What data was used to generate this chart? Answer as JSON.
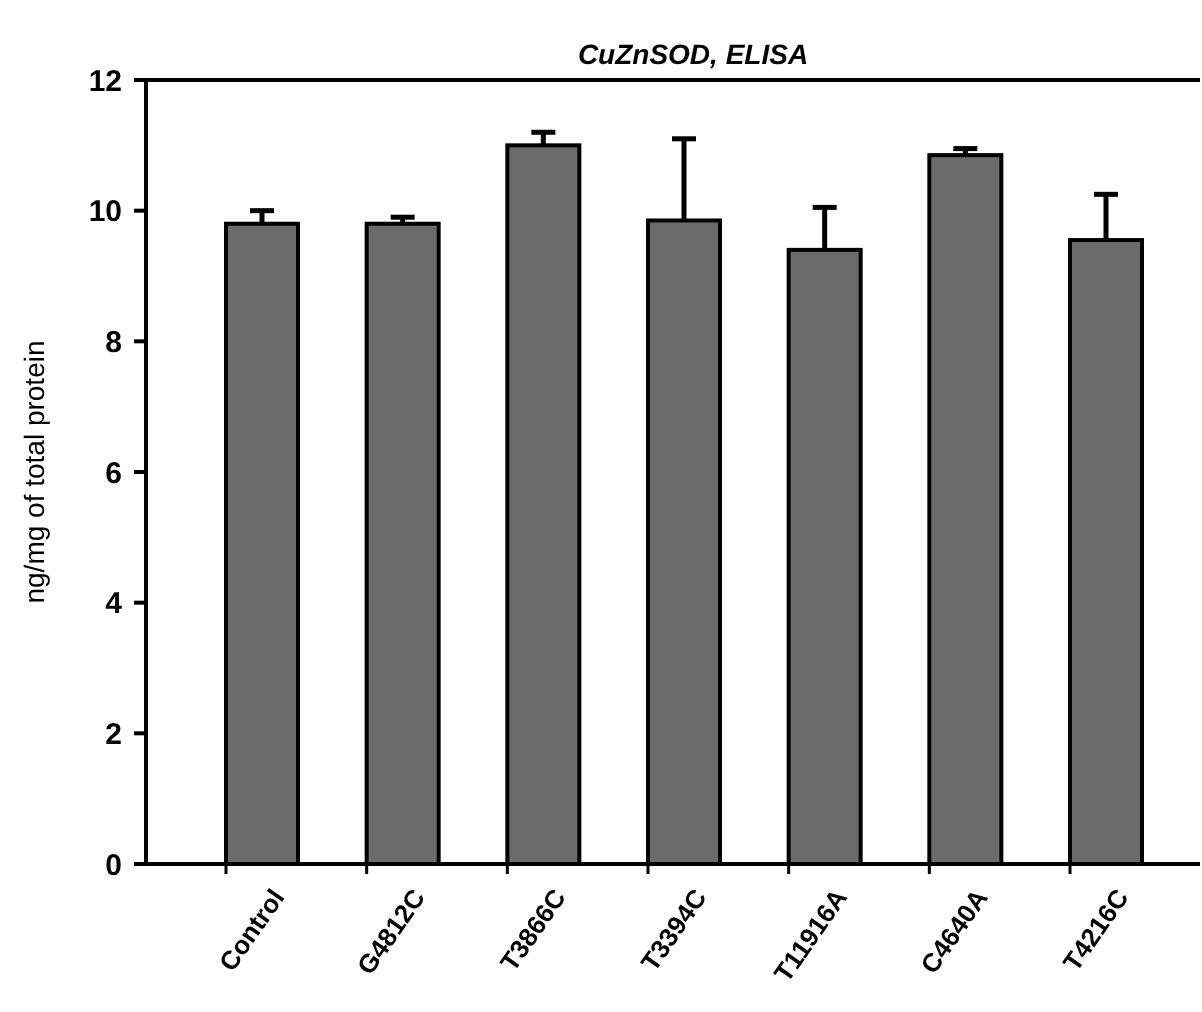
{
  "chart_data": {
    "type": "bar",
    "title": "CuZnSOD, ELISA",
    "ylabel": "ng/mg of total protein",
    "categories": [
      "Control",
      "G4812C",
      "T3866C",
      "T3394C",
      "T11916A",
      "C4640A",
      "T4216C"
    ],
    "values": [
      9.8,
      9.8,
      11.0,
      9.85,
      9.4,
      10.85,
      9.55
    ],
    "errors": [
      [
        9.8,
        10.0
      ],
      [
        9.8,
        9.9
      ],
      [
        11.0,
        11.2
      ],
      [
        9.85,
        11.1
      ],
      [
        9.4,
        10.05
      ],
      [
        10.85,
        10.95
      ],
      [
        9.55,
        10.25
      ]
    ],
    "color": "#6b6b6b",
    "ylim": [
      0,
      12
    ],
    "yticks": [
      0,
      2,
      4,
      6,
      8,
      10,
      12
    ],
    "grid": false
  }
}
